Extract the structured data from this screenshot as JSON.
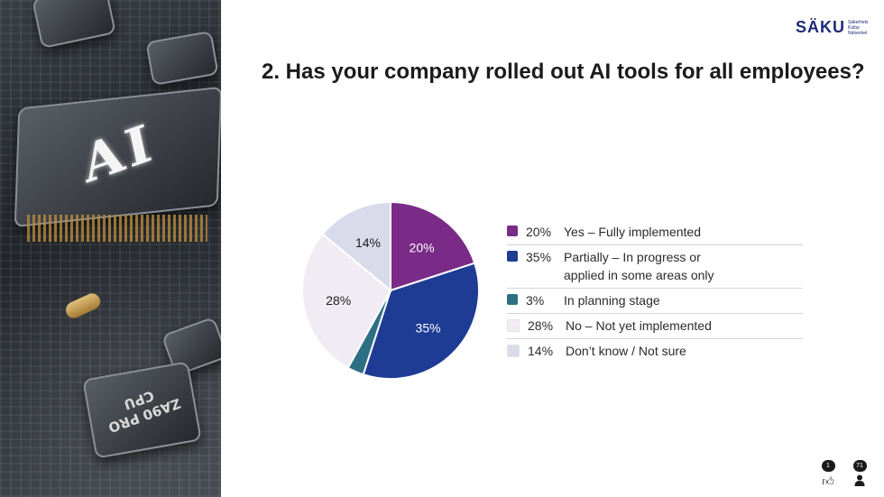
{
  "logo": {
    "mark": "SÄKU",
    "sub": [
      "Säkerhets",
      "Kultur",
      "Nätverket"
    ]
  },
  "photo": {
    "chip_main_text": "AI",
    "chip_cpu_text": "ZA90 PRO CPU"
  },
  "title": "2. Has your company rolled out AI tools for all employees?",
  "chart_data": {
    "type": "pie",
    "title": "2. Has your company rolled out AI tools for all employees?",
    "start_angle_deg": 0,
    "slices": [
      {
        "label": "Yes – Fully implemented",
        "label_line2": "",
        "value": 20,
        "display": "20%",
        "color": "#7a2a87",
        "text_color": "#ffffff"
      },
      {
        "label": "Partially – In progress or",
        "label_line2": "applied in some areas only",
        "value": 35,
        "display": "35%",
        "color": "#1f3c94",
        "text_color": "#ffffff"
      },
      {
        "label": "In planning stage",
        "label_line2": "",
        "value": 3,
        "display": "3%",
        "color": "#2f6f84",
        "text_color": "#ffffff"
      },
      {
        "label": "No – Not yet implemented",
        "label_line2": "",
        "value": 28,
        "display": "28%",
        "color": "#f1ecf3",
        "text_color": "#1b1b1b"
      },
      {
        "label": "Don’t know / Not sure",
        "label_line2": "",
        "value": 14,
        "display": "14%",
        "color": "#d9dbea",
        "text_color": "#1b1b1b"
      }
    ],
    "legend_position": "right"
  },
  "reactions": {
    "likes": {
      "count": "1",
      "icon": "thumbs-up-icon"
    },
    "people": {
      "count": "71",
      "icon": "person-icon"
    }
  }
}
